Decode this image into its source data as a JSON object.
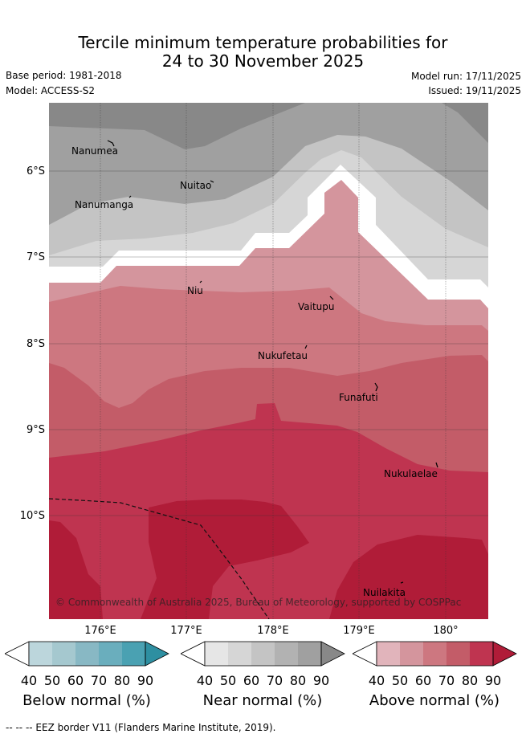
{
  "title_line1": "Tercile minimum temperature probabilities for",
  "title_line2": "24 to 30 November 2025",
  "base_period": "Base period: 1981-2018",
  "model": "Model: ACCESS-S2",
  "model_run": "Model run: 17/11/2025",
  "issued": "Issued: 19/11/2025",
  "latitude_labels": [
    "6°S",
    "7°S",
    "8°S",
    "9°S",
    "10°S"
  ],
  "longitude_labels": [
    "176°E",
    "177°E",
    "178°E",
    "179°E",
    "180°"
  ],
  "islands": [
    "Nanumea",
    "Nuitao",
    "Nanumanga",
    "Niu",
    "Vaitupu",
    "Nukufetau",
    "Funafuti",
    "Nukulaelae",
    "Nuilakita"
  ],
  "copyright": "© Commonwealth of Australia 2025, Bureau of Meteorology, supported by COSPPac",
  "colorbars": [
    {
      "title": "Below normal (%)",
      "ticks": [
        "40",
        "50",
        "60",
        "70",
        "80",
        "90"
      ],
      "colors": [
        "#ffffff",
        "#bcd6dc",
        "#a5c8cf",
        "#88b8c4",
        "#6aaebd",
        "#4aa1b2",
        "#2e8fa1"
      ]
    },
    {
      "title": "Near normal (%)",
      "ticks": [
        "40",
        "50",
        "60",
        "70",
        "80",
        "90"
      ],
      "colors": [
        "#ffffff",
        "#e6e6e6",
        "#d6d6d6",
        "#c4c4c4",
        "#b2b2b2",
        "#a0a0a0",
        "#888888"
      ]
    },
    {
      "title": "Above normal (%)",
      "ticks": [
        "40",
        "50",
        "60",
        "70",
        "80",
        "90"
      ],
      "colors": [
        "#ffffff",
        "#e1b4bb",
        "#d4959d",
        "#cd7780",
        "#c35c68",
        "#bf3450",
        "#b01c38"
      ]
    }
  ],
  "footnote": "-- -- -- EEZ border V11 (Flanders Marine Institute, 2019)."
}
